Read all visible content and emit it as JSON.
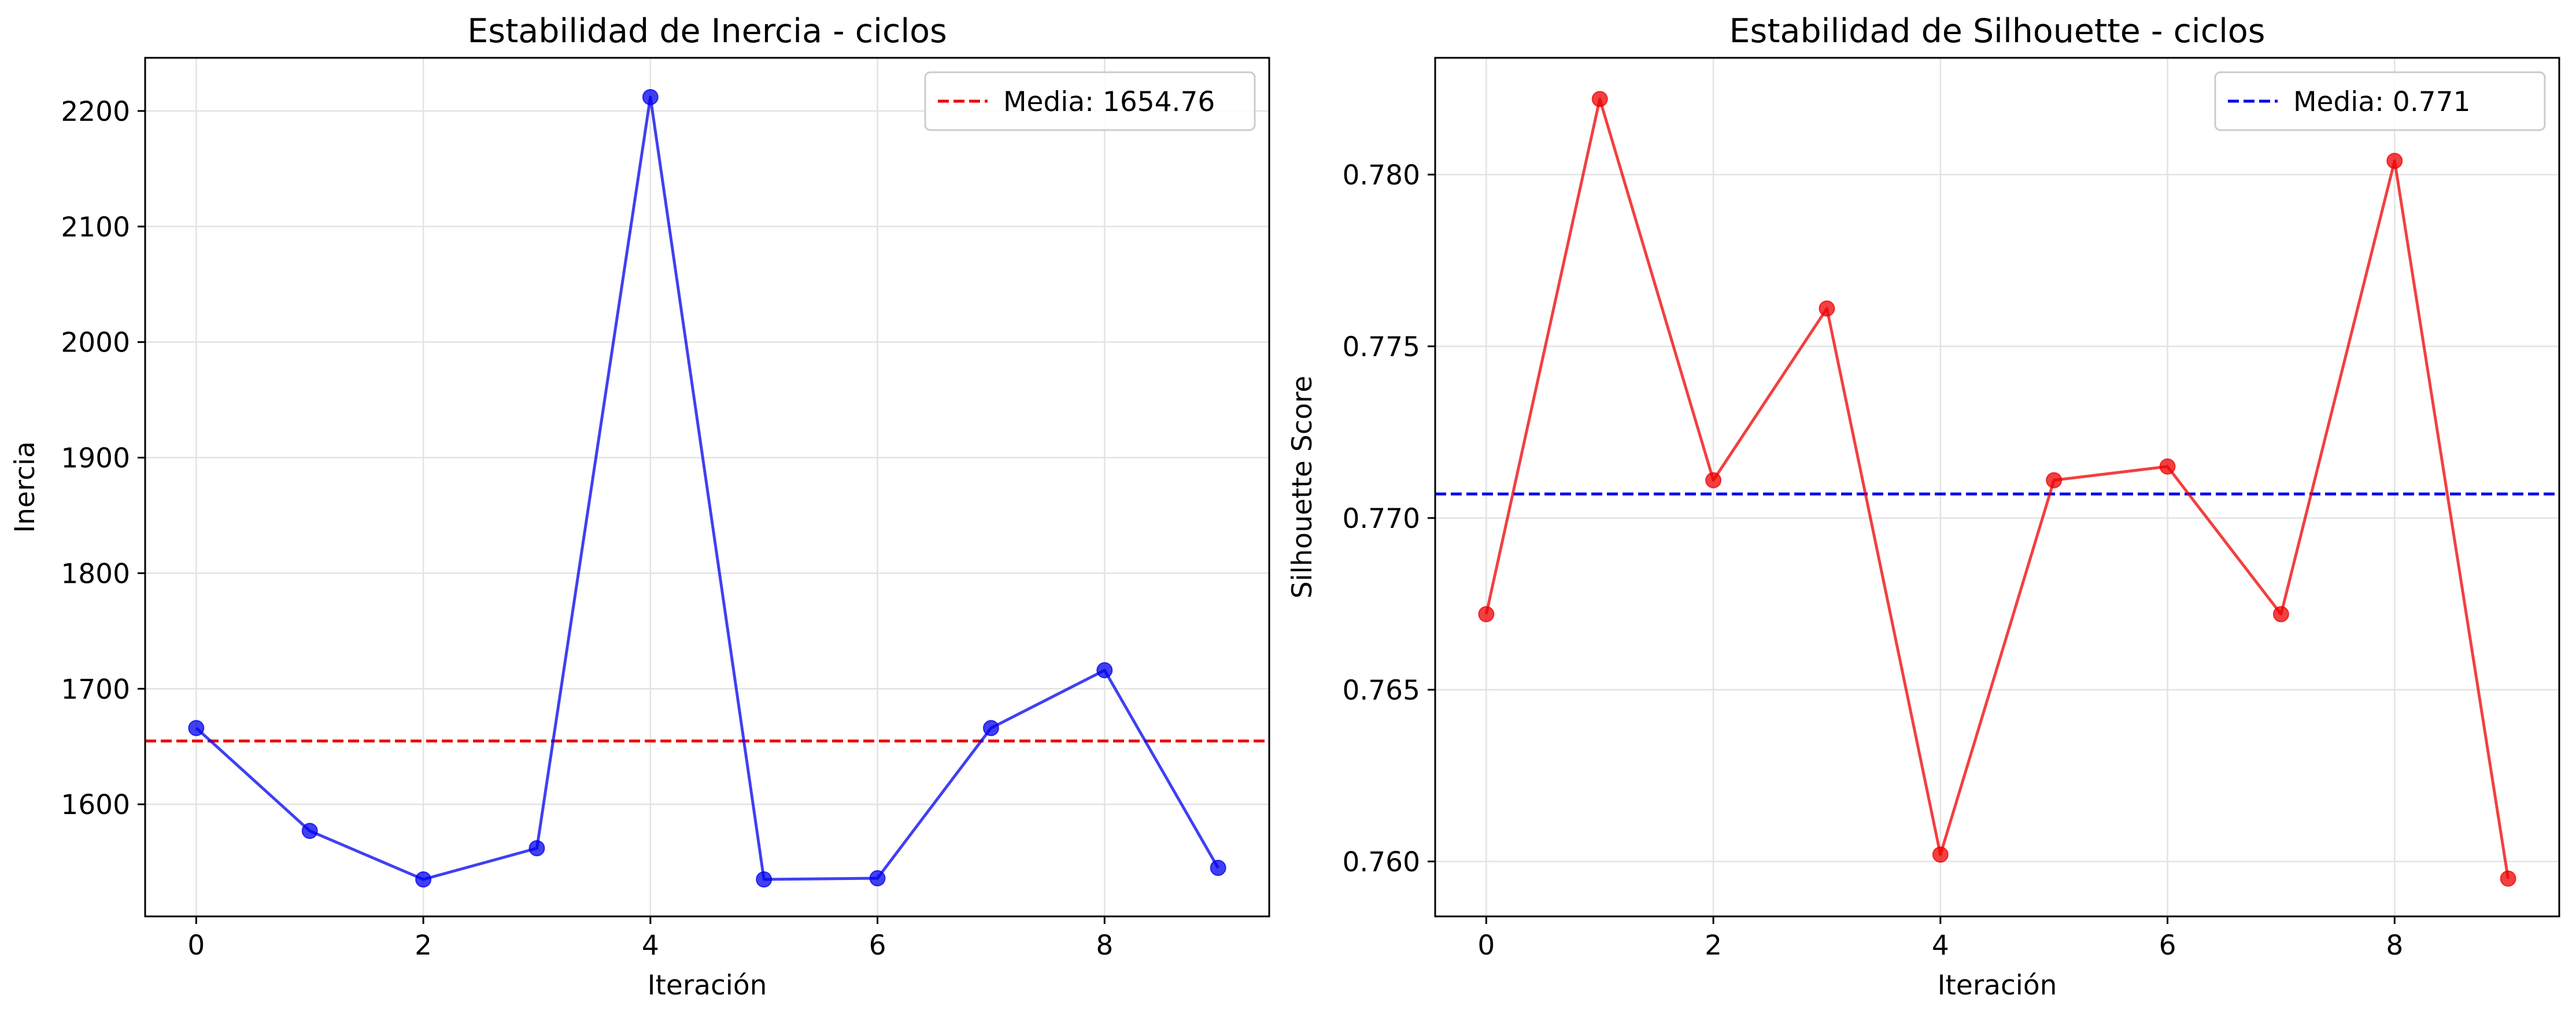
{
  "chart_data": [
    {
      "type": "line",
      "title": "Estabilidad de Inercia - ciclos",
      "xlabel": "Iteración",
      "ylabel": "Inercia",
      "x": [
        0,
        1,
        2,
        3,
        4,
        5,
        6,
        7,
        8,
        9
      ],
      "series": [
        {
          "values": [
            1666,
            1577,
            1535,
            1562,
            2212,
            1535,
            1536,
            1666,
            1716,
            1545
          ],
          "color": "#0000ee",
          "marker": "circle"
        }
      ],
      "reference_line": {
        "label": "Media: 1654.76",
        "value": 1654.76,
        "color": "#ee0000",
        "style": "dashed"
      },
      "xlim": [
        -0.45,
        9.45
      ],
      "ylim": [
        1503,
        2246
      ],
      "xticks": [
        0,
        2,
        4,
        6,
        8
      ],
      "xtick_labels": [
        "0",
        "2",
        "4",
        "6",
        "8"
      ],
      "yticks": [
        1600,
        1700,
        1800,
        1900,
        2000,
        2100,
        2200
      ],
      "ytick_labels": [
        "1600",
        "1700",
        "1800",
        "1900",
        "2000",
        "2100",
        "2200"
      ],
      "grid": true,
      "legend": "top-right"
    },
    {
      "type": "line",
      "title": "Estabilidad de Silhouette - ciclos",
      "xlabel": "Iteración",
      "ylabel": "Silhouette Score",
      "x": [
        0,
        1,
        2,
        3,
        4,
        5,
        6,
        7,
        8,
        9
      ],
      "series": [
        {
          "values": [
            0.7672,
            0.7822,
            0.7711,
            0.7761,
            0.7602,
            0.7711,
            0.7715,
            0.7672,
            0.7804,
            0.7595
          ],
          "color": "#ee0000",
          "marker": "circle"
        }
      ],
      "reference_line": {
        "label": "Media: 0.771",
        "value": 0.7707,
        "color": "#0000ee",
        "style": "dashed"
      },
      "xlim": [
        -0.45,
        9.45
      ],
      "ylim": [
        0.7584,
        0.7834
      ],
      "xticks": [
        0,
        2,
        4,
        6,
        8
      ],
      "xtick_labels": [
        "0",
        "2",
        "4",
        "6",
        "8"
      ],
      "yticks": [
        0.76,
        0.765,
        0.77,
        0.775,
        0.78
      ],
      "ytick_labels": [
        "0.760",
        "0.765",
        "0.770",
        "0.775",
        "0.780"
      ],
      "grid": true,
      "legend": "top-right"
    }
  ]
}
